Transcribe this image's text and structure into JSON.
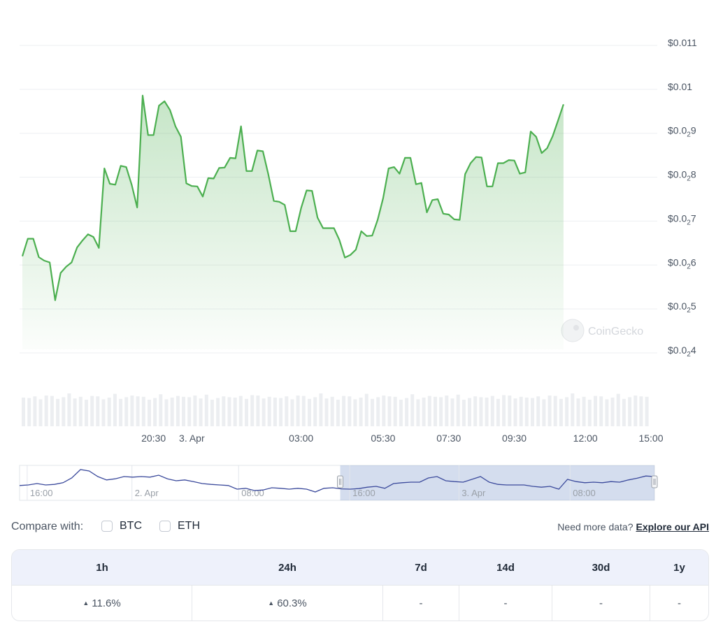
{
  "chart_data": {
    "type": "line",
    "y_ticks": [
      {
        "base": "$0.0",
        "sub": "",
        "tail": "11"
      },
      {
        "base": "$0.0",
        "sub": "",
        "tail": "1"
      },
      {
        "base": "$0.0",
        "sub": "2",
        "tail": "9"
      },
      {
        "base": "$0.0",
        "sub": "2",
        "tail": "8"
      },
      {
        "base": "$0.0",
        "sub": "2",
        "tail": "7"
      },
      {
        "base": "$0.0",
        "sub": "2",
        "tail": "6"
      },
      {
        "base": "$0.0",
        "sub": "2",
        "tail": "5"
      },
      {
        "base": "$0.0",
        "sub": "2",
        "tail": "4"
      }
    ],
    "y_tick_values": [
      0.011,
      0.01,
      0.009,
      0.008,
      0.007,
      0.006,
      0.005,
      0.004
    ],
    "ylim": [
      0.004,
      0.011
    ],
    "x_ticks": [
      {
        "label": "20:30",
        "t": 13.5
      },
      {
        "label": "3. Apr",
        "t": 17
      },
      {
        "label": "03:00",
        "t": 27
      },
      {
        "label": "05:30",
        "t": 34.5
      },
      {
        "label": "07:30",
        "t": 40.5
      },
      {
        "label": "09:30",
        "t": 46.5
      },
      {
        "label": "12:00",
        "t": 53
      },
      {
        "label": "15:00",
        "t": 59
      }
    ],
    "xlim": [
      1.5,
      59
    ],
    "series": [
      {
        "color": "#4caf50",
        "points": [
          [
            1.5,
            0.00612
          ],
          [
            2.0,
            0.00652
          ],
          [
            2.5,
            0.00652
          ],
          [
            3.0,
            0.0061
          ],
          [
            3.5,
            0.00602
          ],
          [
            4.0,
            0.00598
          ],
          [
            4.5,
            0.00512
          ],
          [
            5.0,
            0.00574
          ],
          [
            5.5,
            0.00588
          ],
          [
            6.0,
            0.00598
          ],
          [
            6.5,
            0.00632
          ],
          [
            7.0,
            0.00648
          ],
          [
            7.5,
            0.00662
          ],
          [
            8.0,
            0.00656
          ],
          [
            8.5,
            0.00631
          ],
          [
            9.0,
            0.00812
          ],
          [
            9.5,
            0.00777
          ],
          [
            10.0,
            0.00775
          ],
          [
            10.5,
            0.00818
          ],
          [
            11.0,
            0.00815
          ],
          [
            11.5,
            0.00775
          ],
          [
            12.0,
            0.00723
          ],
          [
            12.5,
            0.00978
          ],
          [
            13.0,
            0.00888
          ],
          [
            13.5,
            0.00888
          ],
          [
            14.0,
            0.00955
          ],
          [
            14.5,
            0.00965
          ],
          [
            15.0,
            0.00945
          ],
          [
            15.5,
            0.00908
          ],
          [
            16.0,
            0.00884
          ],
          [
            16.5,
            0.00778
          ],
          [
            17.0,
            0.00772
          ],
          [
            17.5,
            0.00771
          ],
          [
            18.0,
            0.00748
          ],
          [
            18.5,
            0.0079
          ],
          [
            19.0,
            0.00789
          ],
          [
            19.5,
            0.00813
          ],
          [
            20.0,
            0.00814
          ],
          [
            20.5,
            0.00836
          ],
          [
            21.0,
            0.00835
          ],
          [
            21.5,
            0.00908
          ],
          [
            22.0,
            0.00806
          ],
          [
            22.5,
            0.00806
          ],
          [
            23.0,
            0.00853
          ],
          [
            23.5,
            0.00851
          ],
          [
            24.0,
            0.00798
          ],
          [
            24.5,
            0.00738
          ],
          [
            25.0,
            0.00736
          ],
          [
            25.5,
            0.00729
          ],
          [
            26.0,
            0.00669
          ],
          [
            26.5,
            0.00669
          ],
          [
            27.0,
            0.00722
          ],
          [
            27.5,
            0.00762
          ],
          [
            28.0,
            0.00761
          ],
          [
            28.5,
            0.007
          ],
          [
            29.0,
            0.00676
          ],
          [
            29.5,
            0.00676
          ],
          [
            30.0,
            0.00676
          ],
          [
            30.5,
            0.00649
          ],
          [
            31.0,
            0.00609
          ],
          [
            31.5,
            0.00615
          ],
          [
            32.0,
            0.00627
          ],
          [
            32.5,
            0.00669
          ],
          [
            33.0,
            0.00658
          ],
          [
            33.5,
            0.00659
          ],
          [
            34.0,
            0.00695
          ],
          [
            34.5,
            0.00744
          ],
          [
            35.0,
            0.00812
          ],
          [
            35.5,
            0.00815
          ],
          [
            36.0,
            0.008
          ],
          [
            36.5,
            0.00836
          ],
          [
            37.0,
            0.00836
          ],
          [
            37.5,
            0.00776
          ],
          [
            38.0,
            0.00779
          ],
          [
            38.5,
            0.00712
          ],
          [
            39.0,
            0.0074
          ],
          [
            39.5,
            0.00742
          ],
          [
            40.0,
            0.00709
          ],
          [
            40.5,
            0.00707
          ],
          [
            41.0,
            0.00696
          ],
          [
            41.5,
            0.00695
          ],
          [
            42.0,
            0.00799
          ],
          [
            42.5,
            0.00824
          ],
          [
            43.0,
            0.00838
          ],
          [
            43.5,
            0.00837
          ],
          [
            44.0,
            0.00771
          ],
          [
            44.5,
            0.00771
          ],
          [
            45.0,
            0.00824
          ],
          [
            45.5,
            0.00824
          ],
          [
            46.0,
            0.00831
          ],
          [
            46.5,
            0.0083
          ],
          [
            47.0,
            0.008
          ],
          [
            47.5,
            0.00803
          ],
          [
            48.0,
            0.00896
          ],
          [
            48.5,
            0.00884
          ],
          [
            49.0,
            0.00847
          ],
          [
            49.5,
            0.00858
          ],
          [
            50.0,
            0.00885
          ],
          [
            50.5,
            0.00921
          ],
          [
            51.0,
            0.00958
          ]
        ]
      }
    ],
    "watermark": "CoinGecko",
    "navigator": {
      "labels": [
        {
          "label": "16:00",
          "pos": 0.012
        },
        {
          "label": "2. Apr",
          "pos": 0.177
        },
        {
          "label": "08:00",
          "pos": 0.345
        },
        {
          "label": "16:00",
          "pos": 0.52
        },
        {
          "label": "3. Apr",
          "pos": 0.692
        },
        {
          "label": "08:00",
          "pos": 0.867
        }
      ],
      "selection": [
        0.505,
        1.0
      ],
      "series": [
        0.62,
        0.6,
        0.55,
        0.6,
        0.58,
        0.52,
        0.35,
        0.05,
        0.1,
        0.3,
        0.42,
        0.38,
        0.3,
        0.32,
        0.3,
        0.32,
        0.25,
        0.38,
        0.45,
        0.42,
        0.48,
        0.55,
        0.58,
        0.6,
        0.62,
        0.75,
        0.72,
        0.8,
        0.78,
        0.7,
        0.72,
        0.75,
        0.72,
        0.75,
        0.85,
        0.72,
        0.7,
        0.74,
        0.75,
        0.73,
        0.68,
        0.65,
        0.72,
        0.55,
        0.52,
        0.5,
        0.5,
        0.35,
        0.3,
        0.45,
        0.48,
        0.5,
        0.4,
        0.3,
        0.5,
        0.58,
        0.6,
        0.6,
        0.6,
        0.65,
        0.68,
        0.65,
        0.75,
        0.4,
        0.48,
        0.52,
        0.5,
        0.52,
        0.48,
        0.5,
        0.42,
        0.36,
        0.28,
        0.3
      ]
    }
  },
  "compare": {
    "label": "Compare with:",
    "options": [
      {
        "label": "BTC"
      },
      {
        "label": "ETH"
      }
    ],
    "note": "Need more data?",
    "link": "Explore our API"
  },
  "performance": {
    "headers": [
      "1h",
      "24h",
      "7d",
      "14d",
      "30d",
      "1y"
    ],
    "values": [
      "11.6%",
      "60.3%",
      "-",
      "-",
      "-",
      "-"
    ],
    "colors": {
      "up": "#4caf50"
    }
  }
}
